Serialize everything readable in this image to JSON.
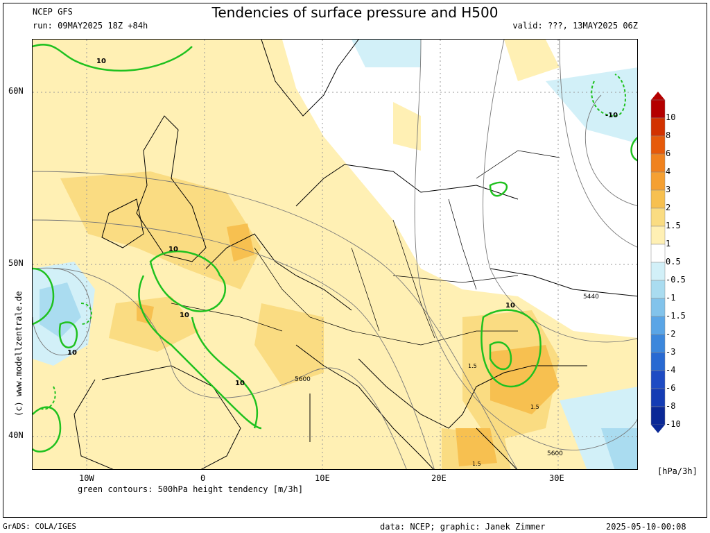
{
  "header": {
    "model": "NCEP GFS",
    "run": "run: 09MAY2025 18Z +84h",
    "title": "Tendencies of surface pressure and H500",
    "valid": "valid: ???, 13MAY2025 06Z"
  },
  "axes": {
    "lat_labels": [
      "60N",
      "50N",
      "40N"
    ],
    "lon_labels": [
      "10W",
      "0",
      "10E",
      "20E",
      "30E"
    ]
  },
  "colorbar": {
    "labels": [
      "10",
      "8",
      "6",
      "4",
      "3",
      "2",
      "1.5",
      "1",
      "0.5",
      "-0.5",
      "-1",
      "-1.5",
      "-2",
      "-3",
      "-4",
      "-6",
      "-8",
      "-10"
    ],
    "colors": [
      "#b40000",
      "#d23200",
      "#e65a0a",
      "#f0821e",
      "#f5a032",
      "#f7c050",
      "#fadc82",
      "#fff0b4",
      "#ffffff",
      "#d2f0f8",
      "#aadcf0",
      "#82c3eb",
      "#5aa5e6",
      "#3c87dc",
      "#2869d2",
      "#1e4bc3",
      "#143cb4",
      "#0a2896"
    ],
    "unit": "[hPa/3h]"
  },
  "map_labels": {
    "green": [
      "10",
      "10",
      "10",
      "10",
      "10",
      "10",
      "-10"
    ],
    "height": [
      "5600",
      "5440",
      "5600"
    ],
    "pressure": [
      "1.5",
      "1.5",
      "1.5"
    ]
  },
  "footer": {
    "contours_note": "green contours: 500hPa height tendency [m/3h]",
    "grads": "GrADS: COLA/IGES",
    "credit": "data: NCEP; graphic: Janek Zimmer",
    "timestamp": "2025-05-10-00:08",
    "watermark": "(c) www.modellzentrale.de"
  }
}
